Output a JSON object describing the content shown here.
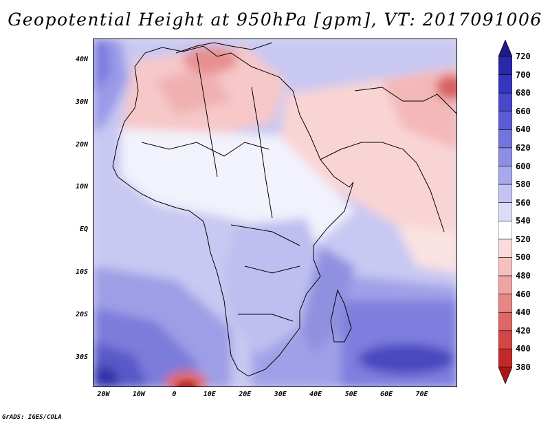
{
  "title": "Geopotential Height at 950hPa [gpm], VT: 2017091006",
  "map": {
    "variable": "Geopotential Height",
    "level": "950hPa",
    "units": "gpm",
    "valid_time": "2017091006",
    "region": "Africa",
    "lon_range": [
      -23,
      80
    ],
    "lat_range": [
      -37,
      45
    ]
  },
  "lat_ticks": [
    {
      "value": 40,
      "label": "40N"
    },
    {
      "value": 30,
      "label": "30N"
    },
    {
      "value": 20,
      "label": "20N"
    },
    {
      "value": 10,
      "label": "10N"
    },
    {
      "value": 0,
      "label": "EQ"
    },
    {
      "value": -10,
      "label": "10S"
    },
    {
      "value": -20,
      "label": "20S"
    },
    {
      "value": -30,
      "label": "30S"
    }
  ],
  "lon_ticks": [
    {
      "value": -20,
      "label": "20W"
    },
    {
      "value": -10,
      "label": "10W"
    },
    {
      "value": 0,
      "label": "0"
    },
    {
      "value": 10,
      "label": "10E"
    },
    {
      "value": 20,
      "label": "20E"
    },
    {
      "value": 30,
      "label": "30E"
    },
    {
      "value": 40,
      "label": "40E"
    },
    {
      "value": 50,
      "label": "50E"
    },
    {
      "value": 60,
      "label": "60E"
    },
    {
      "value": 70,
      "label": "70E"
    }
  ],
  "colorbar": {
    "labels": [
      "720",
      "700",
      "680",
      "660",
      "640",
      "620",
      "600",
      "580",
      "560",
      "540",
      "520",
      "500",
      "480",
      "460",
      "440",
      "420",
      "400",
      "380"
    ],
    "colors": [
      "#1f1a8a",
      "#2a28a8",
      "#3535bd",
      "#4848c8",
      "#5c5cd4",
      "#7474dc",
      "#8e8ee4",
      "#a8a8ec",
      "#c4c4f2",
      "#dcdcf8",
      "#ffffff",
      "#fadada",
      "#f5c0c0",
      "#efa4a4",
      "#e88686",
      "#de6666",
      "#d24646",
      "#c22a2a",
      "#a81818"
    ]
  },
  "footer": "GrADS: IGES/COLA"
}
